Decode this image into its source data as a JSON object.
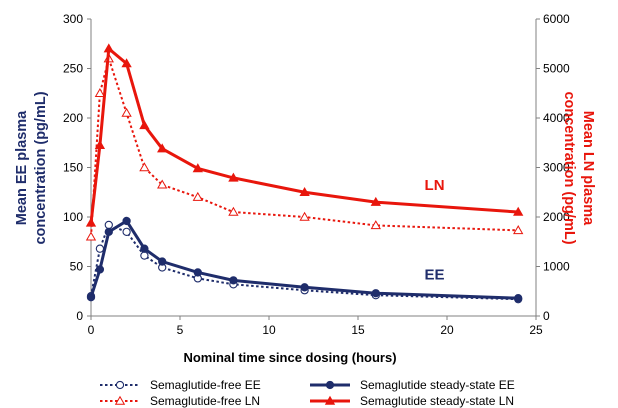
{
  "chart_data": {
    "type": "line",
    "xlabel": "Nominal time since dosing (hours)",
    "ylabel_left": "Mean EE plasma concentration (pg/mL)",
    "ylabel_right": "Mean LN plasma concentration (pg/mL)",
    "xlim": [
      0,
      25
    ],
    "xticks": [
      0,
      5,
      10,
      15,
      20,
      25
    ],
    "ylim_left": [
      0,
      300
    ],
    "yticks_left": [
      0,
      50,
      100,
      150,
      200,
      250,
      300
    ],
    "ylim_right": [
      0,
      6000
    ],
    "yticks_right": [
      0,
      1000,
      2000,
      3000,
      4000,
      5000,
      6000
    ],
    "grid": false,
    "legend_position": "bottom",
    "annotations": [
      {
        "text": "LN",
        "color": "#e8160c",
        "x": 19.3,
        "y_right": 2650
      },
      {
        "text": "EE",
        "color": "#1f2d6b",
        "x": 19.3,
        "y_left": 42
      }
    ],
    "series": [
      {
        "name": "Semaglutide-free EE",
        "axis": "left",
        "color": "#1f2d6b",
        "style": "dotted",
        "marker": "circle-open",
        "x": [
          0,
          0.5,
          1,
          2,
          3,
          4,
          6,
          8,
          12,
          16,
          24
        ],
        "y": [
          20,
          68,
          92,
          85,
          61,
          49,
          38,
          32,
          26,
          21,
          17
        ]
      },
      {
        "name": "Semaglutide steady-state EE",
        "axis": "left",
        "color": "#1f2d6b",
        "style": "solid",
        "marker": "circle-filled",
        "x": [
          0,
          0.5,
          1,
          2,
          3,
          4,
          6,
          8,
          12,
          16,
          24
        ],
        "y": [
          19,
          47,
          85,
          96,
          68,
          55,
          44,
          36,
          29,
          23,
          18
        ]
      },
      {
        "name": "Semaglutide-free LN",
        "axis": "right",
        "color": "#e8160c",
        "style": "dotted",
        "marker": "triangle-open",
        "x": [
          0,
          0.5,
          1,
          2,
          3,
          4,
          6,
          8,
          12,
          16,
          24
        ],
        "y": [
          1600,
          4500,
          5200,
          4100,
          3000,
          2650,
          2400,
          2100,
          2000,
          1830,
          1730
        ]
      },
      {
        "name": "Semaglutide steady-state LN",
        "axis": "right",
        "color": "#e8160c",
        "style": "solid",
        "marker": "triangle-filled",
        "x": [
          0,
          0.5,
          1,
          2,
          3,
          4,
          6,
          8,
          12,
          16,
          24
        ],
        "y": [
          1880,
          3450,
          5400,
          5100,
          3850,
          3380,
          2980,
          2790,
          2500,
          2300,
          2100
        ]
      }
    ]
  }
}
